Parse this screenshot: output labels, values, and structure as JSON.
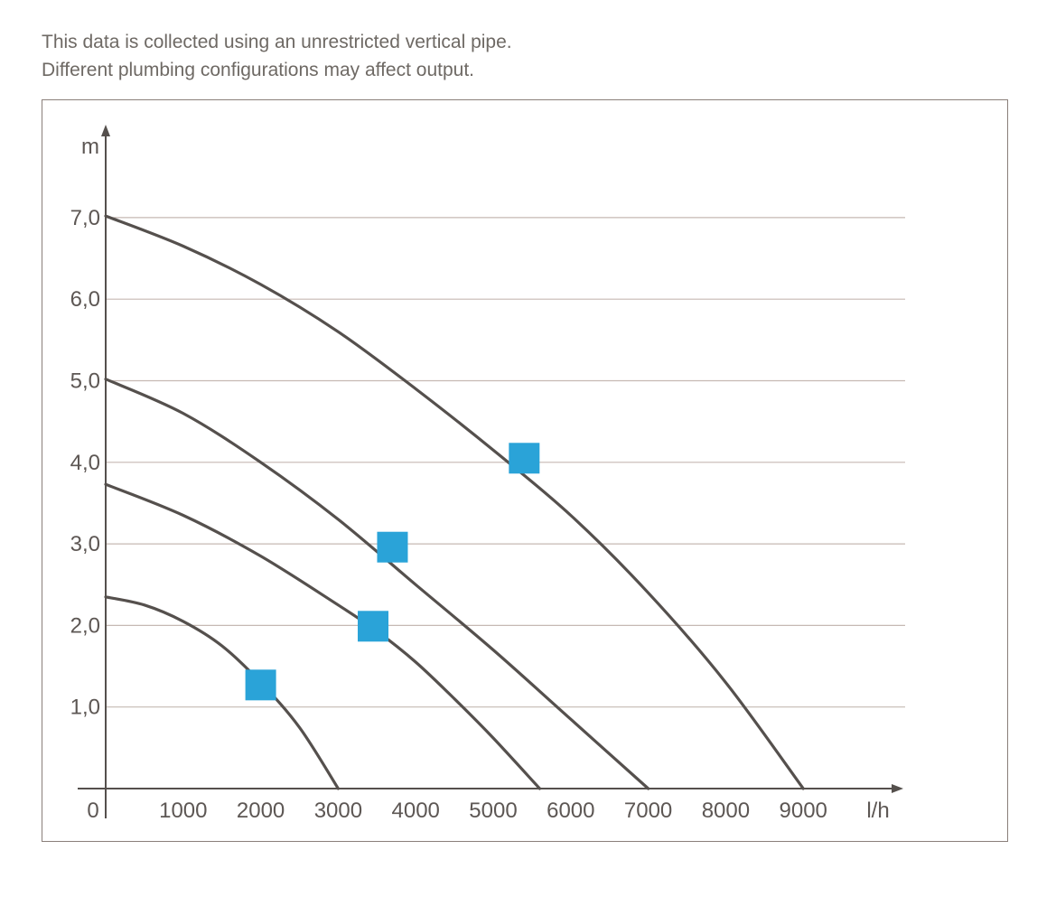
{
  "notes": [
    "This data is collected using an unrestricted vertical pipe.",
    "Different plumbing configurations may affect output."
  ],
  "chart_data": {
    "type": "line",
    "title": "",
    "xlabel": "l/h",
    "ylabel": "m",
    "origin_label": "0",
    "xlim": [
      0,
      10000
    ],
    "ylim": [
      0,
      8
    ],
    "x_ticks": [
      1000,
      2000,
      3000,
      4000,
      5000,
      6000,
      7000,
      8000,
      9000
    ],
    "x_tick_labels": [
      "1000",
      "2000",
      "3000",
      "4000",
      "5000",
      "6000",
      "7000",
      "8000",
      "9000"
    ],
    "y_ticks": [
      1,
      2,
      3,
      4,
      5,
      6,
      7
    ],
    "y_tick_labels": [
      "1,0",
      "2,0",
      "3,0",
      "4,0",
      "5,0",
      "6,0",
      "7,0"
    ],
    "grid": true,
    "legend": "none",
    "series": [
      {
        "points": [
          [
            0,
            2.35
          ],
          [
            500,
            2.25
          ],
          [
            1000,
            2.05
          ],
          [
            1500,
            1.75
          ],
          [
            2000,
            1.3
          ],
          [
            2500,
            0.75
          ],
          [
            3000,
            0
          ]
        ]
      },
      {
        "points": [
          [
            0,
            3.73
          ],
          [
            1000,
            3.35
          ],
          [
            2000,
            2.85
          ],
          [
            3000,
            2.25
          ],
          [
            3500,
            1.93
          ],
          [
            4000,
            1.55
          ],
          [
            4500,
            1.1
          ],
          [
            5000,
            0.62
          ],
          [
            5600,
            0
          ]
        ]
      },
      {
        "points": [
          [
            0,
            5.02
          ],
          [
            1000,
            4.6
          ],
          [
            2000,
            4.0
          ],
          [
            3000,
            3.3
          ],
          [
            4000,
            2.5
          ],
          [
            5000,
            1.7
          ],
          [
            6000,
            0.85
          ],
          [
            7000,
            0
          ]
        ]
      },
      {
        "points": [
          [
            0,
            7.02
          ],
          [
            1000,
            6.65
          ],
          [
            2000,
            6.18
          ],
          [
            3000,
            5.6
          ],
          [
            4000,
            4.9
          ],
          [
            5000,
            4.15
          ],
          [
            6000,
            3.35
          ],
          [
            7000,
            2.4
          ],
          [
            8000,
            1.3
          ],
          [
            9000,
            0
          ]
        ]
      }
    ],
    "markers": [
      {
        "x": 2000,
        "y": 1.27
      },
      {
        "x": 3450,
        "y": 1.99
      },
      {
        "x": 3700,
        "y": 2.96
      },
      {
        "x": 5400,
        "y": 4.05
      }
    ],
    "colors": {
      "curve": "#55504d",
      "axis": "#55504d",
      "grid": "#c6b9b3",
      "marker": "#2aa3d8",
      "text": "#5d5754"
    }
  }
}
